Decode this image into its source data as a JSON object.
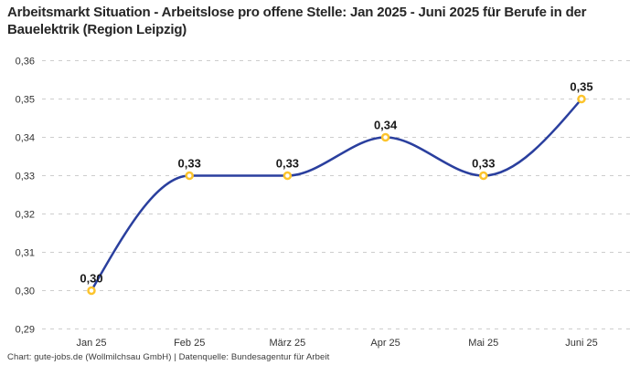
{
  "header": {
    "title": "Arbeitsmarkt Situation - Arbeitslose pro offene Stelle: Jan 2025 - Juni 2025 für Berufe in der Bauelektrik (Region Leipzig)"
  },
  "footer": {
    "credit": "Chart: gute-jobs.de (Wollmilchsau GmbH) | Datenquelle: Bundesagentur für Arbeit"
  },
  "chart_data": {
    "type": "line",
    "title": "Arbeitsmarkt Situation - Arbeitslose pro offene Stelle: Jan 2025 - Juni 2025 für Berufe in der Bauelektrik (Region Leipzig)",
    "categories": [
      "Jan 25",
      "Feb 25",
      "März 25",
      "Apr 25",
      "Mai 25",
      "Juni 25"
    ],
    "values": [
      0.3,
      0.33,
      0.33,
      0.34,
      0.33,
      0.35
    ],
    "point_labels": [
      "0,30",
      "0,33",
      "0,33",
      "0,34",
      "0,33",
      "0,35"
    ],
    "y_ticks": [
      0.29,
      0.3,
      0.31,
      0.32,
      0.33,
      0.34,
      0.35,
      0.36
    ],
    "y_tick_labels": [
      "0,29",
      "0,30",
      "0,31",
      "0,32",
      "0,33",
      "0,34",
      "0,35",
      "0,36"
    ],
    "ylim": [
      0.29,
      0.36
    ],
    "xlabel": "",
    "ylabel": "",
    "legend": "none",
    "grid": "horizontal-dashed",
    "curve": "monotone",
    "colors": {
      "line": "#2a3f9e",
      "marker_stroke": "#fcc42d",
      "marker_fill": "#ffffff",
      "grid": "#cdcdcd",
      "point_label_text": "#1a1a1a",
      "axis_text": "#333333",
      "title_text": "#262626",
      "background": "#ffffff"
    }
  }
}
